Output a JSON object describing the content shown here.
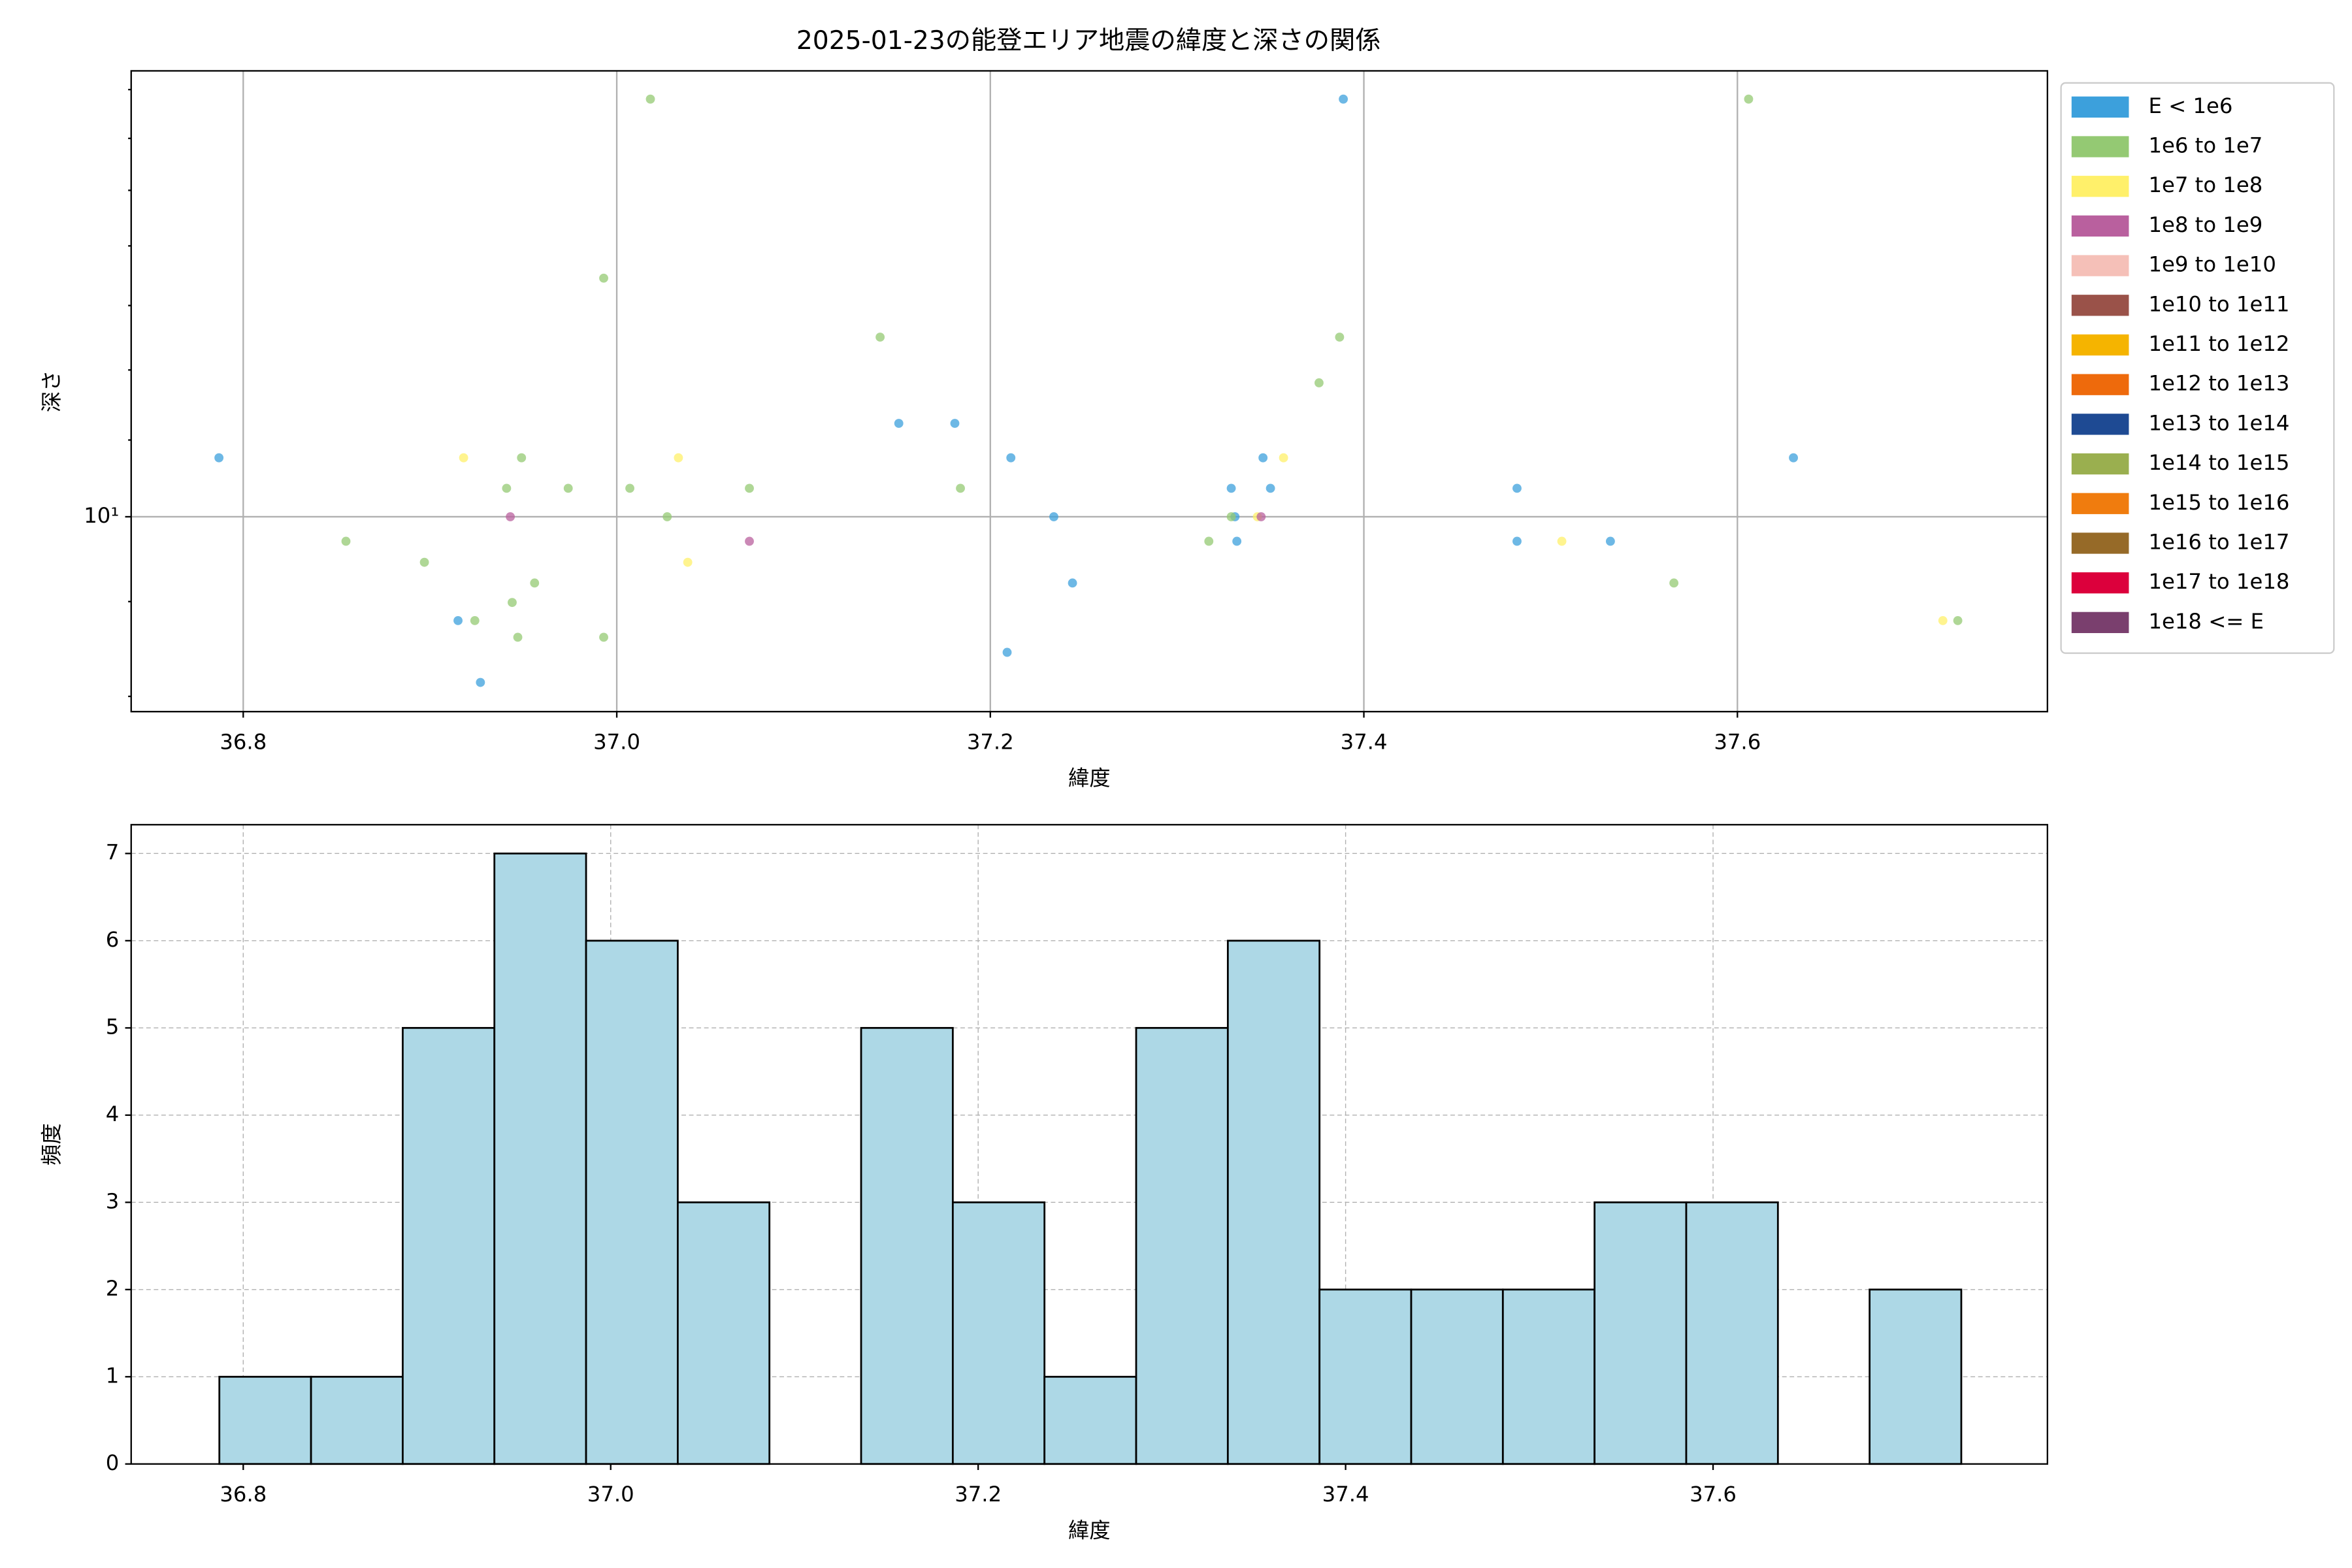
{
  "chart_data": [
    {
      "type": "scatter",
      "title": "2025-01-23の能登エリア地震の緯度と深さの関係",
      "xlabel": "緯度",
      "ylabel": "深さ",
      "xlim": [
        36.74,
        37.766
      ],
      "ylim": [
        7.85,
        17.4
      ],
      "log_y": true,
      "grid": true,
      "legend": "outside",
      "xticks": [
        36.8,
        {
          "value": 37,
          "label": "37.0"
        },
        37.2,
        37.4,
        37.6
      ],
      "yticks": [
        {
          "value": 10,
          "label": "10¹"
        }
      ],
      "yminorticks": [
        8,
        9,
        11,
        12,
        13,
        14,
        15,
        16,
        17
      ],
      "series": [
        {
          "name": "E < 1e6",
          "color": "#3ca0dc",
          "x": [
            36.787,
            36.915,
            36.927,
            37.151,
            37.181,
            37.211,
            37.234,
            37.244,
            37.209,
            37.329,
            37.331,
            37.332,
            37.346,
            37.35,
            37.389,
            37.482,
            37.482,
            37.532,
            37.63
          ],
          "values": [
            10.76,
            8.79,
            8.14,
            11.23,
            11.23,
            10.76,
            10,
            9.21,
            8.45,
            10.36,
            10,
            9.7,
            10.76,
            10.36,
            16.8,
            10.36,
            9.7,
            9.7,
            10.76
          ]
        },
        {
          "name": "1e6 to 1e7",
          "color": "#94c973",
          "x": [
            36.855,
            36.897,
            36.924,
            36.941,
            36.949,
            36.944,
            36.947,
            36.956,
            36.974,
            36.993,
            36.993,
            37.007,
            37.018,
            37.027,
            37.071,
            37.141,
            37.184,
            37.317,
            37.329,
            37.376,
            37.387,
            37.566,
            37.606,
            37.718
          ],
          "values": [
            9.7,
            9.45,
            8.79,
            10.36,
            10.76,
            8.99,
            8.61,
            9.21,
            10.36,
            13.45,
            8.61,
            10.36,
            16.8,
            10,
            10.36,
            12.5,
            10.36,
            9.7,
            10,
            11.81,
            12.5,
            9.21,
            16.8,
            8.79
          ]
        },
        {
          "name": "1e7 to 1e8",
          "color": "#fff06a",
          "x": [
            36.918,
            37.033,
            37.038,
            37.343,
            37.357,
            37.506,
            37.71
          ],
          "values": [
            10.76,
            10.76,
            9.45,
            10,
            10.76,
            9.7,
            8.79
          ]
        },
        {
          "name": "1e8 to 1e9",
          "color": "#b9609e",
          "x": [
            36.943,
            37.071,
            37.345
          ],
          "values": [
            10,
            9.7,
            10
          ]
        },
        {
          "name": "1e9 to 1e10",
          "color": "#f5c0b8",
          "x": [],
          "values": []
        },
        {
          "name": "1e10 to 1e11",
          "color": "#9a5249",
          "x": [],
          "values": []
        },
        {
          "name": "1e11 to 1e12",
          "color": "#f5b400",
          "x": [],
          "values": []
        },
        {
          "name": "1e12 to 1e13",
          "color": "#ee6a0c",
          "x": [],
          "values": []
        },
        {
          "name": "1e13 to 1e14",
          "color": "#1e4a93",
          "x": [],
          "values": []
        },
        {
          "name": "1e14 to 1e15",
          "color": "#9aaf4f",
          "x": [],
          "values": []
        },
        {
          "name": "1e15 to 1e16",
          "color": "#f07c0e",
          "x": [],
          "values": []
        },
        {
          "name": "1e16 to 1e17",
          "color": "#966a28",
          "x": [],
          "values": []
        },
        {
          "name": "1e17 to 1e18",
          "color": "#dc003c",
          "x": [],
          "values": []
        },
        {
          "name": "1e18 <= E",
          "color": "#7a3f6e",
          "x": [],
          "values": []
        }
      ]
    },
    {
      "type": "histogram",
      "xlabel": "緯度",
      "ylabel": "頻度",
      "color": "#add8e6",
      "edgecolor": "#000000",
      "xlim": [
        36.739,
        37.782
      ],
      "ylim": [
        0,
        7.33
      ],
      "grid": true,
      "xticks": [
        36.8,
        {
          "value": 37,
          "label": "37.0"
        },
        37.2,
        37.4,
        37.6
      ],
      "yticks": [
        0,
        1,
        2,
        3,
        4,
        5,
        6,
        7
      ],
      "bins": [
        36.787,
        36.8369,
        36.8868,
        36.9367,
        36.9866,
        37.0365,
        37.0864,
        37.1363,
        37.1862,
        37.2361,
        37.286,
        37.3359,
        37.3858,
        37.4357,
        37.4856,
        37.5355,
        37.5854,
        37.6353,
        37.6852,
        37.7351
      ],
      "values": [
        1,
        1,
        5,
        7,
        6,
        3,
        0,
        5,
        3,
        1,
        5,
        6,
        2,
        2,
        2,
        3,
        3,
        0,
        2
      ]
    }
  ]
}
